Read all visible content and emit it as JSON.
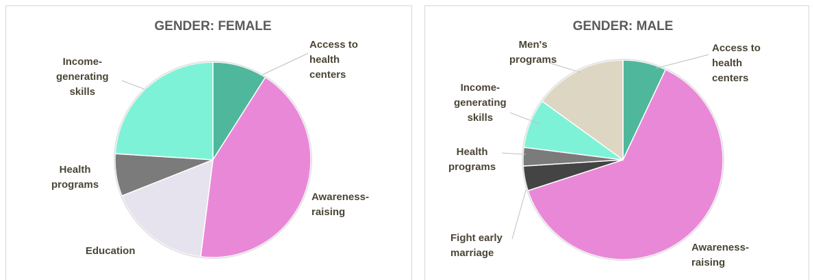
{
  "chart_data": [
    {
      "type": "pie",
      "title": "GENDER: FEMALE",
      "categories": [
        "Access to\nhealth\ncenters",
        "Awareness-\nraising",
        "Education",
        "Health\nprograms",
        "Income-\ngenerating\nskills"
      ],
      "values": [
        9,
        43,
        17,
        7,
        24
      ],
      "colors": [
        "#4fb79b",
        "#ea88d8",
        "#e6e2ee",
        "#7b7b7b",
        "#7ef2d6"
      ]
    },
    {
      "type": "pie",
      "title": "GENDER: MALE",
      "categories": [
        "Access to\nhealth\ncenters",
        "Awareness-\nraising",
        "Fight early\nmarriage",
        "Health\nprograms",
        "Income-\ngenerating\nskills",
        "Men's\nprograms"
      ],
      "values": [
        7,
        63,
        4,
        3,
        8,
        15
      ],
      "colors": [
        "#4fb79b",
        "#ea88d8",
        "#444444",
        "#7b7b7b",
        "#7ef2d6",
        "#dcd6c3"
      ]
    }
  ]
}
